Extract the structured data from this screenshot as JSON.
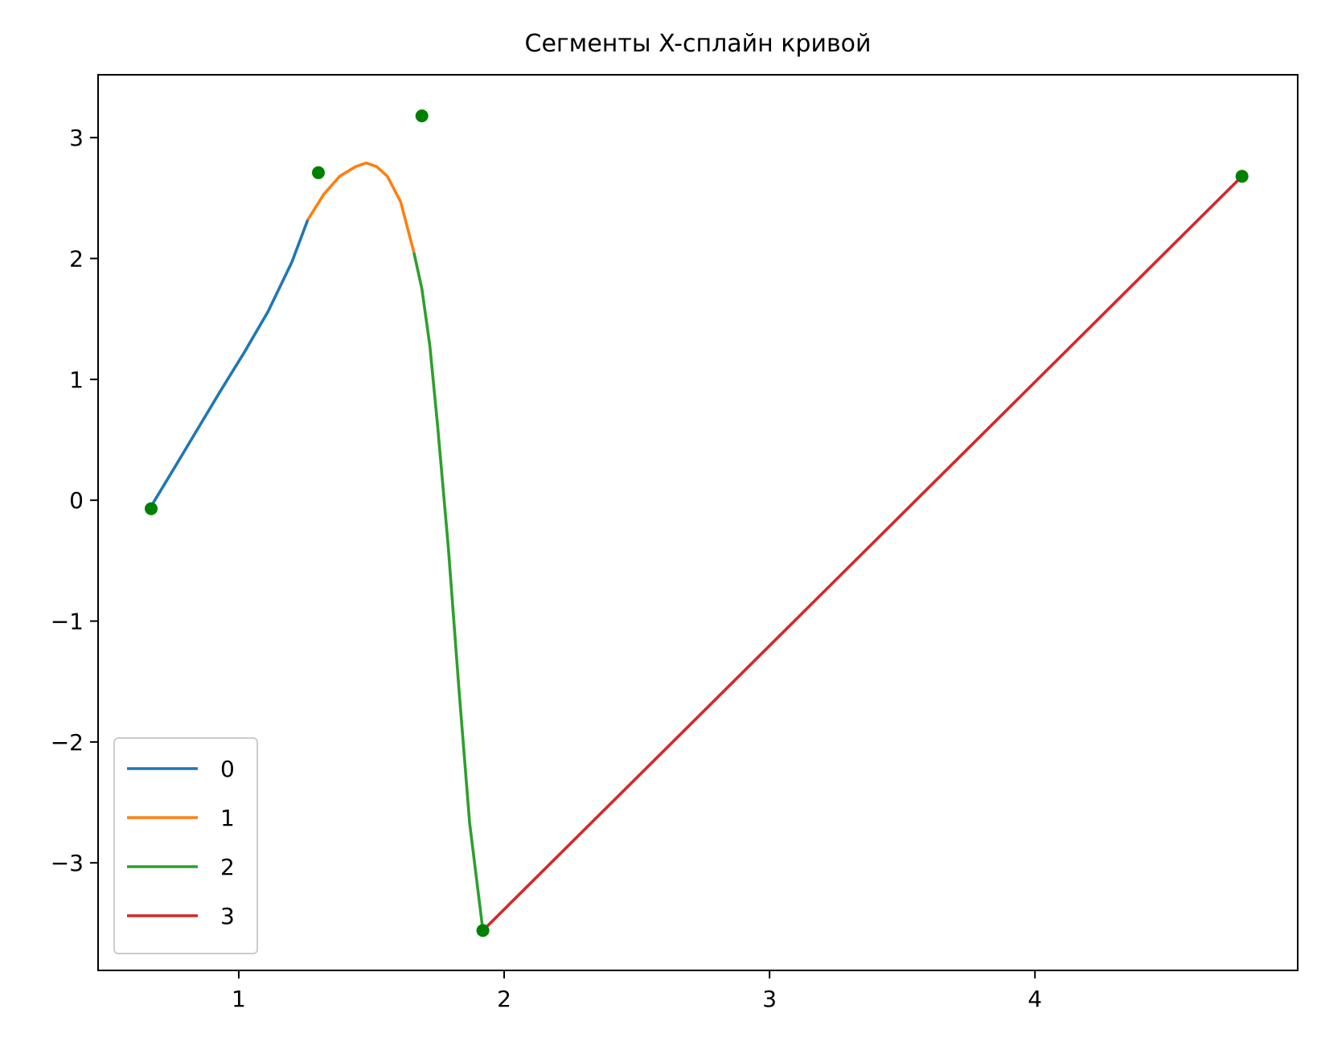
{
  "chart_data": {
    "type": "line",
    "title": "Сегменты X-сплайн кривой",
    "xlabel": "",
    "ylabel": "",
    "xlim": [
      0.47,
      4.99
    ],
    "ylim": [
      -3.89,
      3.52
    ],
    "xticks": [
      1,
      2,
      3,
      4
    ],
    "yticks": [
      -3,
      -2,
      -1,
      0,
      1,
      2,
      3
    ],
    "xtick_labels": [
      "1",
      "2",
      "3",
      "4"
    ],
    "ytick_labels": [
      "−3",
      "−2",
      "−1",
      "0",
      "1",
      "2",
      "3"
    ],
    "grid": false,
    "legend_position": "lower-left",
    "series": [
      {
        "name": "0",
        "color": "#1f77b4",
        "points": [
          [
            0.67,
            -0.05
          ],
          [
            0.75,
            0.24
          ],
          [
            0.84,
            0.57
          ],
          [
            0.93,
            0.9
          ],
          [
            1.02,
            1.22
          ],
          [
            1.11,
            1.56
          ],
          [
            1.2,
            1.97
          ],
          [
            1.26,
            2.32
          ]
        ]
      },
      {
        "name": "1",
        "color": "#ff7f0e",
        "points": [
          [
            1.26,
            2.32
          ],
          [
            1.32,
            2.53
          ],
          [
            1.38,
            2.68
          ],
          [
            1.44,
            2.76
          ],
          [
            1.48,
            2.79
          ],
          [
            1.52,
            2.76
          ],
          [
            1.56,
            2.68
          ],
          [
            1.61,
            2.47
          ],
          [
            1.66,
            2.05
          ]
        ]
      },
      {
        "name": "2",
        "color": "#2ca02c",
        "points": [
          [
            1.66,
            2.05
          ],
          [
            1.69,
            1.75
          ],
          [
            1.72,
            1.28
          ],
          [
            1.75,
            0.6
          ],
          [
            1.79,
            -0.4
          ],
          [
            1.83,
            -1.57
          ],
          [
            1.87,
            -2.67
          ],
          [
            1.92,
            -3.56
          ]
        ]
      },
      {
        "name": "3",
        "color": "#d62728",
        "points": [
          [
            1.92,
            -3.56
          ],
          [
            4.78,
            2.68
          ]
        ]
      }
    ],
    "control_points": {
      "color": "#008000",
      "points": [
        [
          0.67,
          -0.07
        ],
        [
          1.3,
          2.71
        ],
        [
          1.69,
          3.18
        ],
        [
          1.92,
          -3.56
        ],
        [
          4.78,
          2.68
        ]
      ]
    }
  }
}
